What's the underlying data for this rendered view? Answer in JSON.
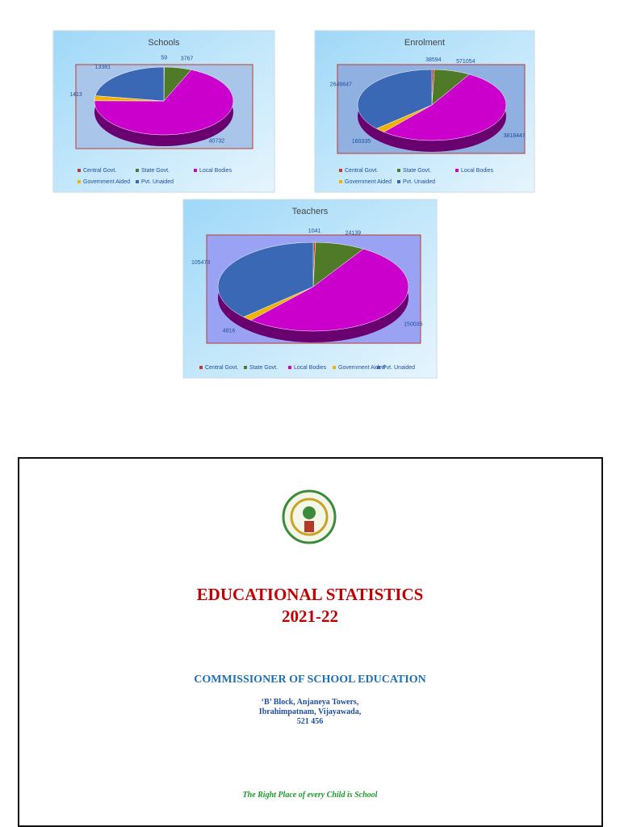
{
  "chart_data": [
    {
      "type": "pie",
      "title": "Schools",
      "categories": [
        "Central Govt.",
        "State Govt.",
        "Local Bodies",
        "Government Aided",
        "Pvt. Unaided"
      ],
      "values": [
        59,
        3767,
        40732,
        1413,
        13381
      ],
      "colors": [
        "#c0392b",
        "#4f7a28",
        "#cc00cc",
        "#f0b400",
        "#3a68b4"
      ]
    },
    {
      "type": "pie",
      "title": "Enrolment",
      "categories": [
        "Central Govt.",
        "State Govt.",
        "Local Bodies",
        "Government Aided",
        "Pvt. Unaided"
      ],
      "values": [
        38594,
        571054,
        3818447,
        160335,
        2646647
      ],
      "colors": [
        "#c0392b",
        "#4f7a28",
        "#cc00cc",
        "#f0b400",
        "#3a68b4"
      ]
    },
    {
      "type": "pie",
      "title": "Teachers",
      "categories": [
        "Central Govt.",
        "State Govt.",
        "Local Bodies",
        "Government Aided",
        "Pvt. Unaided"
      ],
      "values": [
        1041,
        24139,
        150035,
        4816,
        105473
      ],
      "colors": [
        "#c0392b",
        "#4f7a28",
        "#cc00cc",
        "#f0b400",
        "#3a68b4"
      ]
    }
  ],
  "document": {
    "title": "EDUCATIONAL STATISTICS",
    "year": "2021-22",
    "office": "COMMISSIONER OF SCHOOL EDUCATION",
    "address": [
      "‘B’ Block, Anjaneya Towers,",
      "Ibrahimpatnam, Vijayawada,",
      "521 456"
    ],
    "tagline": "The Right Place of every Child is School"
  }
}
